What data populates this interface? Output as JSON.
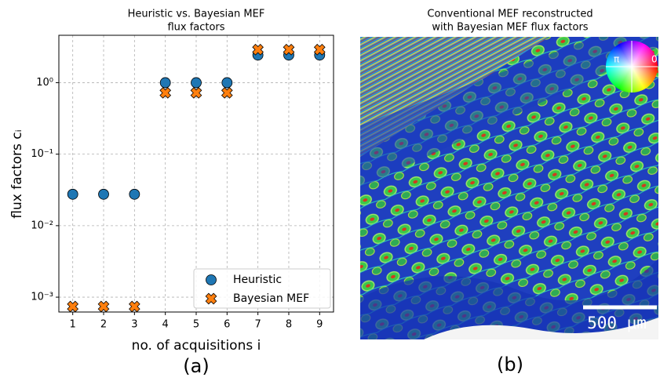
{
  "chart_data": {
    "type": "scatter",
    "title": [
      "Heuristic vs. Bayesian MEF",
      "flux factors"
    ],
    "xlabel": "no. of acquisitions i",
    "ylabel": "flux factors cᵢ",
    "x": [
      1,
      2,
      3,
      4,
      5,
      6,
      7,
      8,
      9
    ],
    "series": [
      {
        "name": "Heuristic",
        "color": "#1f77b4",
        "marker": "o",
        "values": [
          0.0275,
          0.0275,
          0.0275,
          1.0,
          1.0,
          1.0,
          2.43,
          2.43,
          2.43
        ]
      },
      {
        "name": "Bayesian MEF",
        "color": "#ff7f0e",
        "marker": "x",
        "values": [
          0.00074,
          0.00074,
          0.00074,
          0.72,
          0.72,
          0.72,
          2.9,
          2.9,
          2.9
        ]
      }
    ],
    "xlim": [
      0.55,
      9.45
    ],
    "xticks": [
      1,
      2,
      3,
      4,
      5,
      6,
      7,
      8,
      9
    ],
    "ylim": [
      0.00062,
      4.6
    ],
    "log_y": true,
    "yticks": [
      {
        "value": 0.001,
        "label": "10⁻³"
      },
      {
        "value": 0.01,
        "label": "10⁻²"
      },
      {
        "value": 0.1,
        "label": "10⁻¹"
      },
      {
        "value": 1,
        "label": "10⁰"
      }
    ],
    "grid": true,
    "legend": "lower right"
  },
  "image_panel": {
    "title": [
      "Conventional MEF reconstructed",
      "with Bayesian MEF flux factors"
    ],
    "scale_bar": "500 μm",
    "wheel_left": "π",
    "wheel_right": "0"
  },
  "panel_labels": [
    "(a)",
    "(b)"
  ]
}
